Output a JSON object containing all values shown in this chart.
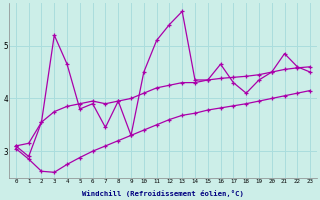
{
  "xlabel": "Windchill (Refroidissement éolien,°C)",
  "background_color": "#cceee8",
  "line_color": "#aa00aa",
  "grid_color": "#aadddd",
  "x_values": [
    0,
    1,
    2,
    3,
    4,
    5,
    6,
    7,
    8,
    9,
    10,
    11,
    12,
    13,
    14,
    15,
    16,
    17,
    18,
    19,
    20,
    21,
    22,
    23
  ],
  "main_line": [
    3.1,
    2.9,
    3.55,
    5.2,
    4.65,
    3.8,
    3.9,
    3.45,
    3.95,
    3.3,
    4.5,
    5.1,
    5.4,
    5.65,
    4.35,
    4.35,
    4.65,
    4.3,
    4.1,
    4.35,
    4.5,
    4.85,
    4.6,
    4.5
  ],
  "upper_line": [
    3.1,
    3.15,
    3.55,
    3.75,
    3.85,
    3.9,
    3.95,
    3.9,
    3.95,
    4.0,
    4.1,
    4.2,
    4.25,
    4.3,
    4.3,
    4.35,
    4.38,
    4.4,
    4.42,
    4.45,
    4.5,
    4.55,
    4.58,
    4.6
  ],
  "lower_line": [
    3.05,
    2.85,
    2.62,
    2.6,
    2.75,
    2.88,
    3.0,
    3.1,
    3.2,
    3.3,
    3.4,
    3.5,
    3.6,
    3.68,
    3.72,
    3.78,
    3.82,
    3.86,
    3.9,
    3.95,
    4.0,
    4.05,
    4.1,
    4.15
  ],
  "ylim": [
    2.5,
    5.8
  ],
  "xlim": [
    -0.5,
    23.5
  ],
  "yticks": [
    3,
    4,
    5
  ],
  "xticks": [
    0,
    1,
    2,
    3,
    4,
    5,
    6,
    7,
    8,
    9,
    10,
    11,
    12,
    13,
    14,
    15,
    16,
    17,
    18,
    19,
    20,
    21,
    22,
    23
  ]
}
